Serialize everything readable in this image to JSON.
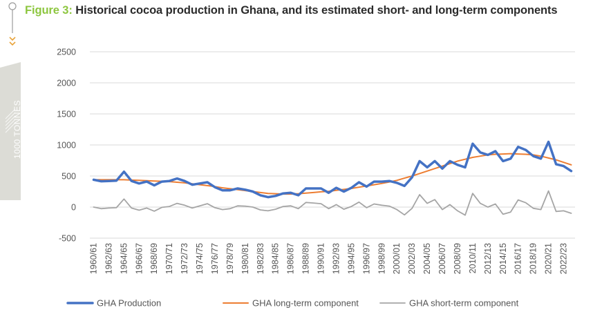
{
  "figure": {
    "label": "Figure 3:",
    "title": "Historical cocoa production in Ghana, and its estimated short- and long-term components",
    "unit_label": "1000 TONNES"
  },
  "colors": {
    "accent": "#8dc63f",
    "sidebar": "#dcdcd6",
    "icon": "#e8a33a",
    "grid": "#d9d9d9"
  },
  "chart_data": {
    "type": "line",
    "ylim": [
      -500,
      2500
    ],
    "yticks": [
      -500,
      0,
      500,
      1000,
      1500,
      2000,
      2500
    ],
    "grid": true,
    "legend_position": "bottom",
    "categories": [
      "1960/61",
      "1961/62",
      "1962/63",
      "1963/64",
      "1964/65",
      "1965/66",
      "1966/67",
      "1967/68",
      "1968/69",
      "1969/70",
      "1970/71",
      "1971/72",
      "1972/73",
      "1973/74",
      "1974/75",
      "1975/76",
      "1976/77",
      "1977/78",
      "1978/79",
      "1979/80",
      "1980/81",
      "1981/82",
      "1982/83",
      "1983/84",
      "1984/85",
      "1985/86",
      "1986/87",
      "1987/88",
      "1988/89",
      "1989/90",
      "1990/91",
      "1991/92",
      "1992/93",
      "1993/94",
      "1994/95",
      "1995/96",
      "1996/97",
      "1997/98",
      "1998/99",
      "1999/00",
      "2000/01",
      "2001/02",
      "2002/03",
      "2003/04",
      "2004/05",
      "2005/06",
      "2006/07",
      "2007/08",
      "2008/09",
      "2009/10",
      "2010/11",
      "2011/12",
      "2012/13",
      "2013/14",
      "2014/15",
      "2015/16",
      "2016/17",
      "2017/18",
      "2018/19",
      "2019/20",
      "2020/21",
      "2021/22",
      "2022/23",
      "2023/24"
    ],
    "tick_labels": [
      "1960/61",
      "1962/63",
      "1964/65",
      "1966/67",
      "1968/69",
      "1970/71",
      "1972/73",
      "1974/75",
      "1976/77",
      "1978/79",
      "1980/81",
      "1982/83",
      "1984/85",
      "1986/87",
      "1988/89",
      "1990/91",
      "1992/93",
      "1994/95",
      "1996/97",
      "1998/99",
      "2000/01",
      "2002/03",
      "2004/05",
      "2006/07",
      "2008/09",
      "2010/11",
      "2012/13",
      "2014/15",
      "2016/17",
      "2018/19",
      "2020/21",
      "2022/23"
    ],
    "series": [
      {
        "name": "GHA Production",
        "color": "#4472c4",
        "values": [
          440,
          415,
          420,
          425,
          570,
          420,
          380,
          410,
          350,
          410,
          420,
          460,
          420,
          360,
          380,
          400,
          320,
          270,
          270,
          300,
          280,
          250,
          190,
          160,
          180,
          220,
          230,
          190,
          300,
          300,
          300,
          230,
          310,
          250,
          310,
          400,
          330,
          410,
          410,
          420,
          390,
          340,
          480,
          740,
          640,
          740,
          620,
          740,
          680,
          640,
          1020,
          880,
          840,
          900,
          740,
          780,
          970,
          920,
          820,
          780,
          1050,
          690,
          660,
          580
        ]
      },
      {
        "name": "GHA long-term component",
        "color": "#ed7d31",
        "values": [
          440,
          440,
          440,
          440,
          440,
          435,
          430,
          425,
          420,
          415,
          410,
          400,
          390,
          375,
          360,
          345,
          330,
          310,
          295,
          280,
          265,
          250,
          235,
          220,
          215,
          210,
          210,
          215,
          225,
          235,
          245,
          255,
          270,
          285,
          300,
          320,
          340,
          360,
          380,
          405,
          430,
          465,
          500,
          540,
          580,
          620,
          660,
          700,
          740,
          770,
          800,
          820,
          840,
          850,
          855,
          860,
          855,
          850,
          840,
          820,
          790,
          760,
          720,
          680
        ]
      },
      {
        "name": "GHA short-term component",
        "color": "#a5a5a5",
        "values": [
          0,
          -25,
          -15,
          -10,
          130,
          -15,
          -50,
          -15,
          -65,
          -5,
          10,
          60,
          30,
          -15,
          20,
          55,
          -10,
          -40,
          -25,
          20,
          15,
          0,
          -45,
          -60,
          -35,
          10,
          20,
          -25,
          75,
          65,
          55,
          -25,
          40,
          -35,
          10,
          80,
          -10,
          50,
          30,
          15,
          -40,
          -125,
          -20,
          200,
          60,
          120,
          -40,
          40,
          -60,
          -130,
          220,
          60,
          0,
          50,
          -115,
          -80,
          115,
          70,
          -20,
          -40,
          260,
          -70,
          -60,
          -100
        ]
      }
    ]
  }
}
